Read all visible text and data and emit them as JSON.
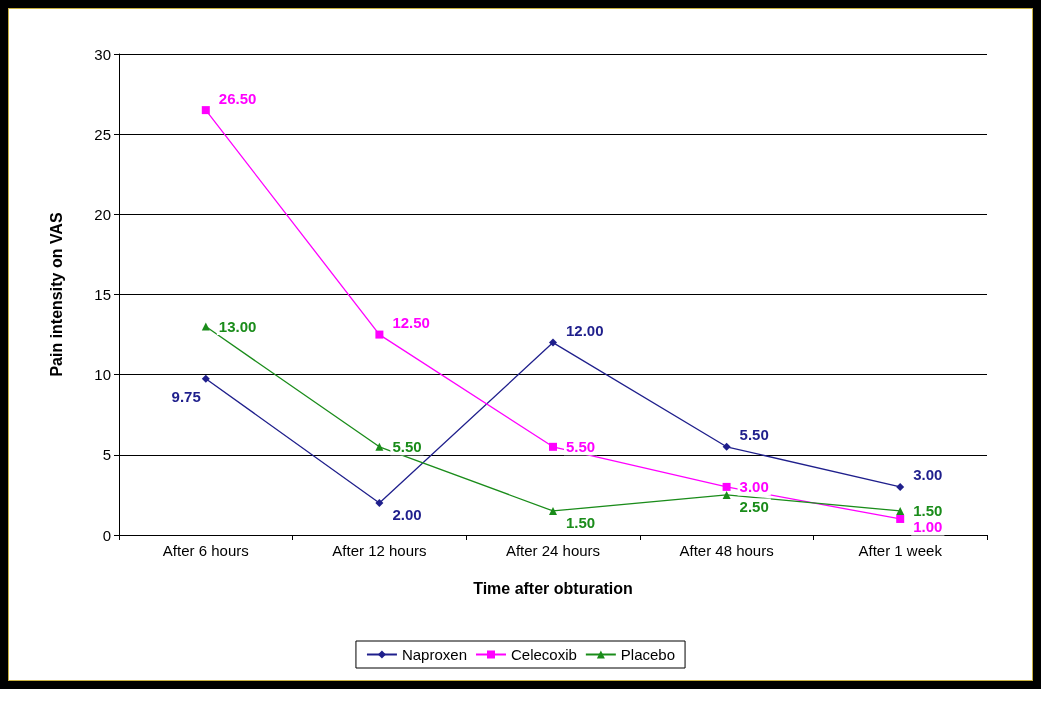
{
  "chart_data": {
    "type": "line",
    "xlabel": "Time after obturation",
    "ylabel": "Pain intensity on VAS",
    "categories": [
      "After 6 hours",
      "After 12 hours",
      "After 24 hours",
      "After 48 hours",
      "After 1 week"
    ],
    "series": [
      {
        "name": "Naproxen",
        "color": "#1f1f8c",
        "marker": "diamond",
        "values": [
          9.75,
          2,
          12,
          5.5,
          3
        ],
        "value_labels": [
          "9.75",
          "2.00",
          "12.00",
          "5.50",
          "3.00"
        ]
      },
      {
        "name": "Celecoxib",
        "color": "#ff00ff",
        "marker": "square",
        "values": [
          26.5,
          12.5,
          5.5,
          3,
          1
        ],
        "value_labels": [
          "26.50",
          "12.50",
          "5.50",
          "3.00",
          "1.00"
        ]
      },
      {
        "name": "Placebo",
        "color": "#1a8c1a",
        "marker": "triangle",
        "values": [
          13,
          5.5,
          1.5,
          2.5,
          1.5
        ],
        "value_labels": [
          "13.00",
          "5.50",
          "1.50",
          "2.50",
          "1.50"
        ]
      }
    ],
    "ylim": [
      0,
      30
    ],
    "yticks": [
      0,
      5,
      10,
      15,
      20,
      25,
      30
    ],
    "grid": "y",
    "legend": "bottom",
    "line_style": "solid"
  }
}
